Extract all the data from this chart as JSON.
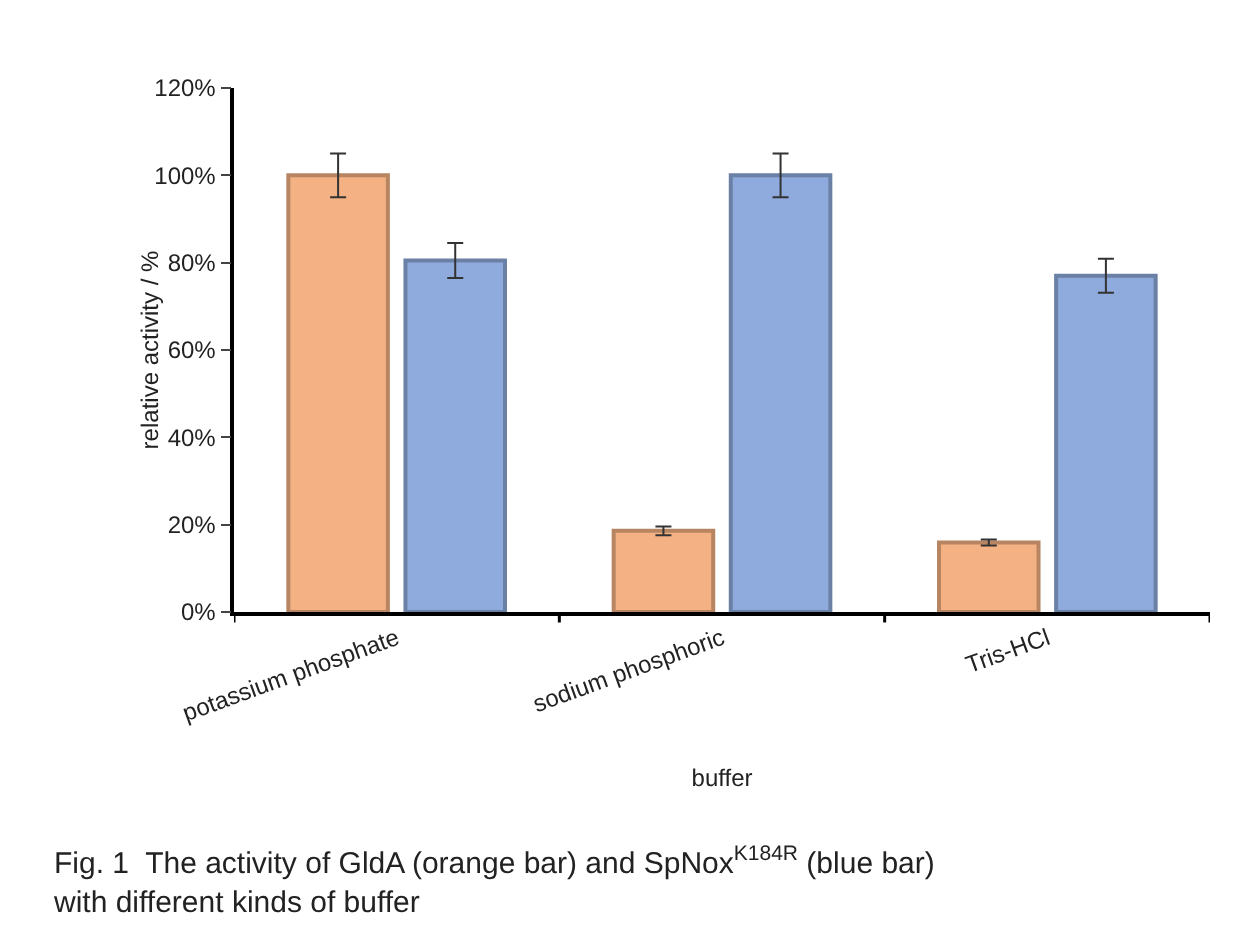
{
  "chart_data": {
    "type": "bar",
    "xlabel": "buffer",
    "ylabel": "relative activity / %",
    "categories": [
      "potassium phosphate",
      "sodium phosphoric",
      "Tris-HCl"
    ],
    "series": [
      {
        "color": "#f4b183",
        "values": [
          100,
          18.6,
          15.9
        ],
        "errors": [
          5,
          1,
          0.7
        ]
      },
      {
        "color": "#8faadc",
        "values": [
          80.5,
          100,
          77
        ],
        "errors": [
          4,
          5,
          3.9
        ]
      }
    ],
    "ylim": [
      0,
      120
    ],
    "yticks": [
      {
        "value": 0,
        "label": "0%"
      },
      {
        "value": 20,
        "label": "20%"
      },
      {
        "value": 40,
        "label": "40%"
      },
      {
        "value": 60,
        "label": "60%"
      },
      {
        "value": 80,
        "label": "80%"
      },
      {
        "value": 100,
        "label": "100%"
      },
      {
        "value": 120,
        "label": "120%"
      }
    ],
    "grid": false,
    "annotations": [
      "Fig. 1  The activity of GldA (orange bar) and SpNox$^{K184R}$ (blue bar) with different kinds of buffer"
    ]
  }
}
